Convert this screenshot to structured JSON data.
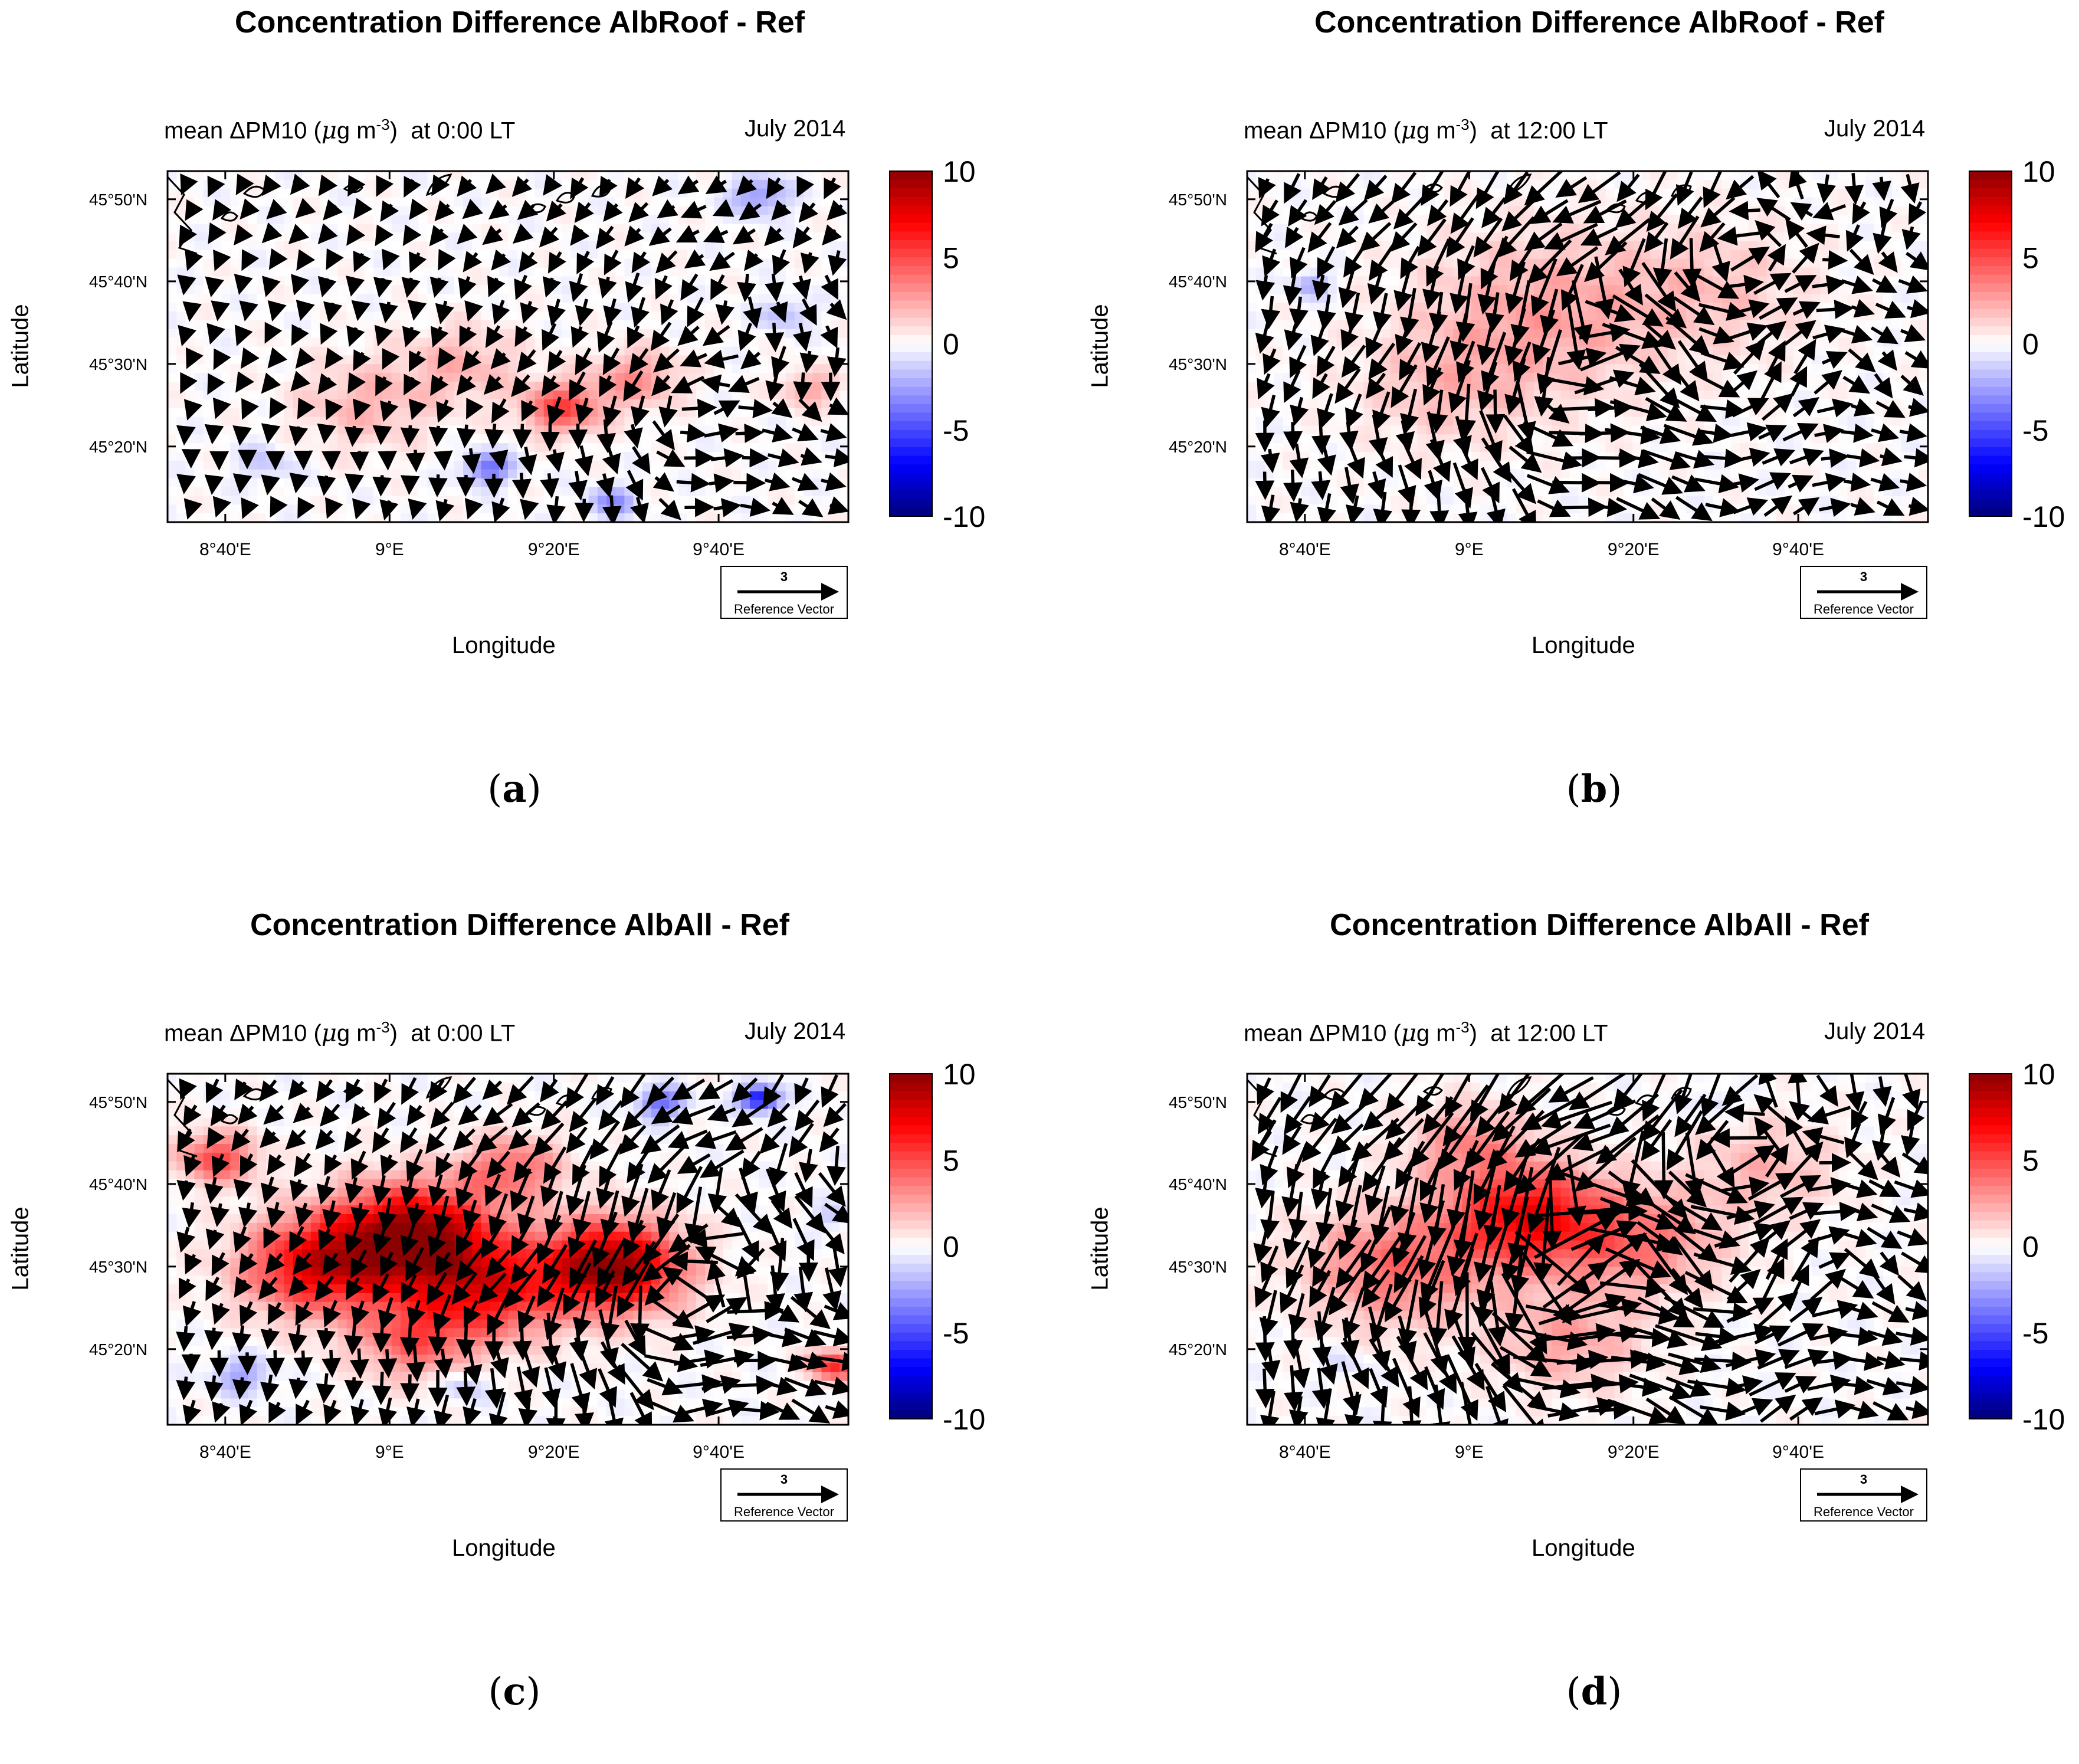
{
  "figure": {
    "common": {
      "subtitle_prefix": "mean ΔPM10 (",
      "unit_mu": "μ",
      "unit_g": "g m",
      "unit_exp": "-3",
      "subtitle_close": ")",
      "date": "July 2014",
      "xlabel": "Longitude",
      "ylabel": "Latitude",
      "ref_value": "3",
      "ref_label": "Reference Vector",
      "colorbar_ticks": [
        "10",
        "5",
        "0",
        "-5",
        "-10"
      ],
      "colors": {
        "max": "#8b0000",
        "pos": "#ff0000",
        "neutral": "#ffffff",
        "neg": "#0000ff",
        "min": "#00007a"
      }
    },
    "panels": [
      {
        "id": "a",
        "title": "Concentration Difference AlbRoof - Ref",
        "time": "at 0:00 LT",
        "caption_letter": "a"
      },
      {
        "id": "b",
        "title": "Concentration Difference AlbRoof - Ref",
        "time": "at 12:00 LT",
        "caption_letter": "b"
      },
      {
        "id": "c",
        "title": "Concentration Difference AlbAll - Ref",
        "time": "at 0:00 LT",
        "caption_letter": "c"
      },
      {
        "id": "d",
        "title": "Concentration Difference AlbAll - Ref",
        "time": "at 12:00 LT",
        "caption_letter": "d"
      }
    ]
  },
  "chart_data": [
    {
      "type": "heatmap",
      "panel": "a",
      "title": "Concentration Difference AlbRoof - Ref",
      "subtitle": "mean ΔPM10 (μg m-3) at 0:00 LT",
      "date": "July 2014",
      "xlabel": "Longitude",
      "ylabel": "Latitude",
      "xlim": [
        8.55,
        9.93
      ],
      "ylim": [
        45.18,
        45.89
      ],
      "xticks": [
        {
          "value": 8.667,
          "label": "8°40'E"
        },
        {
          "value": 9.0,
          "label": "9°E"
        },
        {
          "value": 9.333,
          "label": "9°20'E"
        },
        {
          "value": 9.667,
          "label": "9°40'E"
        }
      ],
      "yticks": [
        {
          "value": 45.333,
          "label": "45°20'N"
        },
        {
          "value": 45.5,
          "label": "45°30'N"
        },
        {
          "value": 45.667,
          "label": "45°40'N"
        },
        {
          "value": 45.833,
          "label": "45°50'N"
        }
      ],
      "colorbar": {
        "min": -10,
        "max": 10,
        "ticks": [
          10,
          5,
          0,
          -5,
          -10
        ]
      },
      "blobs": [
        {
          "lon": 9.35,
          "lat": 45.41,
          "value": 5,
          "spread": 0.08
        },
        {
          "lon": 9.5,
          "lat": 45.47,
          "value": 3,
          "spread": 0.09
        },
        {
          "lon": 8.95,
          "lat": 45.42,
          "value": 2,
          "spread": 0.14
        },
        {
          "lon": 9.15,
          "lat": 45.5,
          "value": 2,
          "spread": 0.12
        },
        {
          "lon": 9.2,
          "lat": 45.29,
          "value": -4,
          "spread": 0.05
        },
        {
          "lon": 9.45,
          "lat": 45.22,
          "value": -3,
          "spread": 0.05
        },
        {
          "lon": 9.75,
          "lat": 45.84,
          "value": -3,
          "spread": 0.06
        },
        {
          "lon": 9.8,
          "lat": 45.6,
          "value": -2,
          "spread": 0.05
        },
        {
          "lon": 8.75,
          "lat": 45.3,
          "value": -1.5,
          "spread": 0.06
        },
        {
          "lon": 9.85,
          "lat": 45.45,
          "value": 2.5,
          "spread": 0.06
        }
      ],
      "wind_gain": 0.35,
      "wind_centers": [
        {
          "lon": 9.6,
          "lat": 45.43,
          "strength": 1.0
        }
      ]
    },
    {
      "type": "heatmap",
      "panel": "b",
      "title": "Concentration Difference AlbRoof - Ref",
      "subtitle": "mean ΔPM10 (μg m-3) at 12:00 LT",
      "date": "July 2014",
      "xlabel": "Longitude",
      "ylabel": "Latitude",
      "xlim": [
        8.55,
        9.93
      ],
      "ylim": [
        45.18,
        45.89
      ],
      "xticks": [
        {
          "value": 8.667,
          "label": "8°40'E"
        },
        {
          "value": 9.0,
          "label": "9°E"
        },
        {
          "value": 9.333,
          "label": "9°20'E"
        },
        {
          "value": 9.667,
          "label": "9°40'E"
        }
      ],
      "yticks": [
        {
          "value": 45.333,
          "label": "45°20'N"
        },
        {
          "value": 45.5,
          "label": "45°30'N"
        },
        {
          "value": 45.667,
          "label": "45°40'N"
        },
        {
          "value": 45.833,
          "label": "45°50'N"
        }
      ],
      "colorbar": {
        "min": -10,
        "max": 10,
        "ticks": [
          10,
          5,
          0,
          -5,
          -10
        ]
      },
      "blobs": [
        {
          "lon": 9.15,
          "lat": 45.6,
          "value": 2.5,
          "spread": 0.25
        },
        {
          "lon": 9.5,
          "lat": 45.65,
          "value": 1.5,
          "spread": 0.2
        },
        {
          "lon": 8.95,
          "lat": 45.45,
          "value": 1.5,
          "spread": 0.18
        },
        {
          "lon": 8.68,
          "lat": 45.66,
          "value": -2.5,
          "spread": 0.04
        }
      ],
      "wind_gain": 0.8,
      "wind_centers": [
        {
          "lon": 9.2,
          "lat": 45.55,
          "strength": 1.0
        }
      ]
    },
    {
      "type": "heatmap",
      "panel": "c",
      "title": "Concentration Difference AlbAll - Ref",
      "subtitle": "mean ΔPM10 (μg m-3) at 0:00 LT",
      "date": "July 2014",
      "xlabel": "Longitude",
      "ylabel": "Latitude",
      "xlim": [
        8.55,
        9.93
      ],
      "ylim": [
        45.18,
        45.89
      ],
      "xticks": [
        {
          "value": 8.667,
          "label": "8°40'E"
        },
        {
          "value": 9.0,
          "label": "9°E"
        },
        {
          "value": 9.333,
          "label": "9°20'E"
        },
        {
          "value": 9.667,
          "label": "9°40'E"
        }
      ],
      "yticks": [
        {
          "value": 45.333,
          "label": "45°20'N"
        },
        {
          "value": 45.5,
          "label": "45°30'N"
        },
        {
          "value": 45.667,
          "label": "45°40'N"
        },
        {
          "value": 45.833,
          "label": "45°50'N"
        }
      ],
      "colorbar": {
        "min": -10,
        "max": 10,
        "ticks": [
          10,
          5,
          0,
          -5,
          -10
        ]
      },
      "blobs": [
        {
          "lon": 9.05,
          "lat": 45.56,
          "value": 10,
          "spread": 0.16
        },
        {
          "lon": 9.45,
          "lat": 45.5,
          "value": 10,
          "spread": 0.14
        },
        {
          "lon": 8.85,
          "lat": 45.5,
          "value": 7,
          "spread": 0.15
        },
        {
          "lon": 9.2,
          "lat": 45.45,
          "value": 6,
          "spread": 0.15
        },
        {
          "lon": 9.25,
          "lat": 45.7,
          "value": 4,
          "spread": 0.1
        },
        {
          "lon": 8.65,
          "lat": 45.72,
          "value": 5,
          "spread": 0.08
        },
        {
          "lon": 9.9,
          "lat": 45.3,
          "value": 6,
          "spread": 0.05
        },
        {
          "lon": 9.05,
          "lat": 45.35,
          "value": 4,
          "spread": 0.12
        },
        {
          "lon": 9.75,
          "lat": 45.84,
          "value": -7,
          "spread": 0.04
        },
        {
          "lon": 9.55,
          "lat": 45.83,
          "value": -4,
          "spread": 0.05
        },
        {
          "lon": 8.7,
          "lat": 45.28,
          "value": -2.5,
          "spread": 0.06
        },
        {
          "lon": 9.15,
          "lat": 45.26,
          "value": -2,
          "spread": 0.05
        },
        {
          "lon": 9.9,
          "lat": 45.6,
          "value": -1.5,
          "spread": 0.04
        }
      ],
      "wind_gain": 0.75,
      "wind_centers": [
        {
          "lon": 9.55,
          "lat": 45.45,
          "strength": 1.0
        }
      ]
    },
    {
      "type": "heatmap",
      "panel": "d",
      "title": "Concentration Difference AlbAll - Ref",
      "subtitle": "mean ΔPM10 (μg m-3) at 12:00 LT",
      "date": "July 2014",
      "xlabel": "Longitude",
      "ylabel": "Latitude",
      "xlim": [
        8.55,
        9.93
      ],
      "ylim": [
        45.18,
        45.89
      ],
      "xticks": [
        {
          "value": 8.667,
          "label": "8°40'E"
        },
        {
          "value": 9.0,
          "label": "9°E"
        },
        {
          "value": 9.333,
          "label": "9°20'E"
        },
        {
          "value": 9.667,
          "label": "9°40'E"
        }
      ],
      "yticks": [
        {
          "value": 45.333,
          "label": "45°20'N"
        },
        {
          "value": 45.5,
          "label": "45°30'N"
        },
        {
          "value": 45.667,
          "label": "45°40'N"
        },
        {
          "value": 45.833,
          "label": "45°50'N"
        }
      ],
      "colorbar": {
        "min": -10,
        "max": 10,
        "ticks": [
          10,
          5,
          0,
          -5,
          -10
        ]
      },
      "blobs": [
        {
          "lon": 9.12,
          "lat": 45.6,
          "value": 7,
          "spread": 0.16
        },
        {
          "lon": 8.85,
          "lat": 45.5,
          "value": 4,
          "spread": 0.18
        },
        {
          "lon": 9.35,
          "lat": 45.55,
          "value": 3.5,
          "spread": 0.16
        },
        {
          "lon": 9.0,
          "lat": 45.75,
          "value": 3,
          "spread": 0.12
        },
        {
          "lon": 9.6,
          "lat": 45.7,
          "value": 2,
          "spread": 0.15
        },
        {
          "lon": 9.2,
          "lat": 45.35,
          "value": 2.5,
          "spread": 0.15
        },
        {
          "lon": 9.5,
          "lat": 45.83,
          "value": -1.5,
          "spread": 0.04
        },
        {
          "lon": 8.75,
          "lat": 45.3,
          "value": -1,
          "spread": 0.05
        }
      ],
      "wind_gain": 1.25,
      "wind_centers": [
        {
          "lon": 9.15,
          "lat": 45.55,
          "strength": 1.0
        }
      ]
    }
  ]
}
